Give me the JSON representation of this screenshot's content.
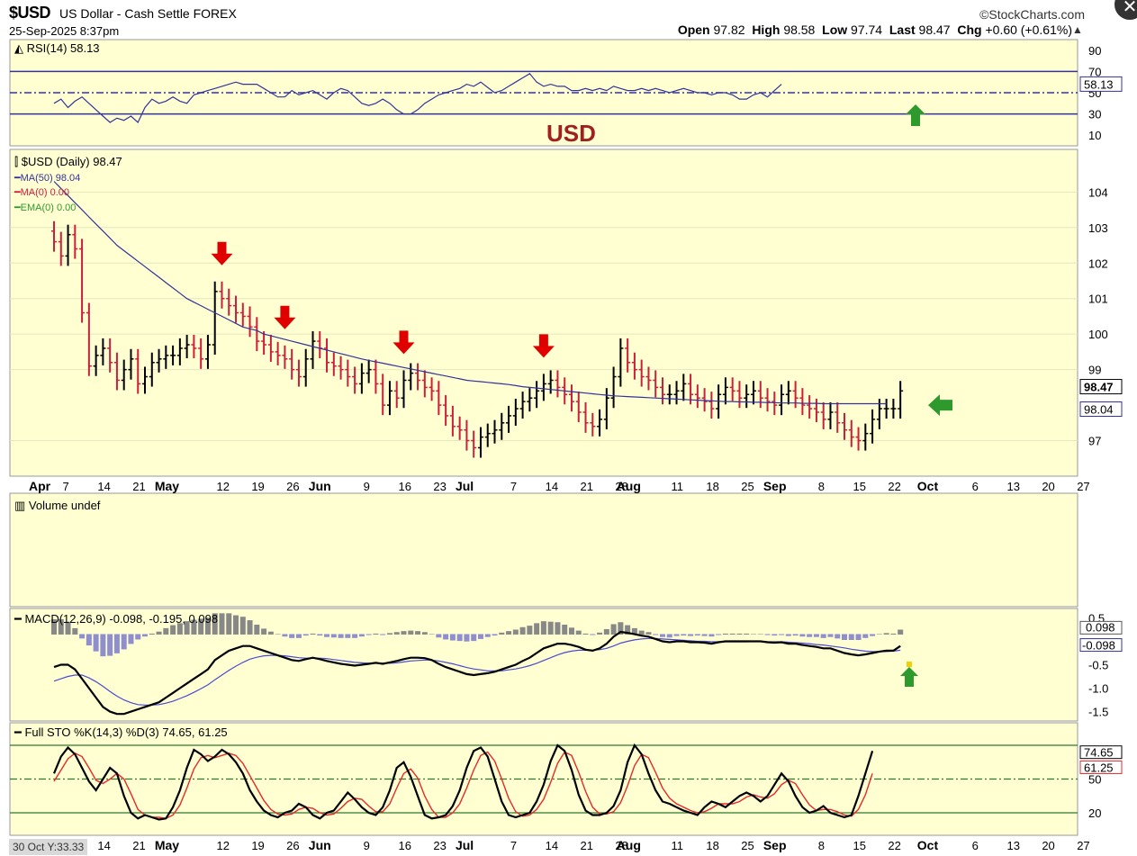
{
  "header": {
    "symbol": "$USD",
    "name": "US Dollar - Cash Settle FOREX",
    "source": "©StockCharts.com",
    "datetime": "25-Sep-2025 8:37pm",
    "open_label": "Open",
    "open": "97.82",
    "high_label": "High",
    "high": "98.58",
    "low_label": "Low",
    "low": "97.74",
    "last_label": "Last",
    "last": "98.47",
    "chg_label": "Chg",
    "chg": "+0.60 (+0.61%)"
  },
  "status_bar": "30 Oct Y:33.33",
  "colors": {
    "panel_bg": "#ffffd2",
    "up": "#000000",
    "down": "#cc1f3d",
    "ma": "#333399",
    "arrow_red": "#e00000",
    "arrow_green": "#2e9a2e",
    "annot": "#a02020"
  },
  "chart_data": [
    {
      "type": "line",
      "panel": "rsi",
      "title": "RSI(14) 58.13",
      "yticks": [
        90,
        70,
        50,
        30,
        10
      ],
      "ylim": [
        0,
        100
      ],
      "levels": [
        70,
        50,
        30
      ],
      "last_label": "58.13",
      "annotation": "USD",
      "values": [
        40,
        44,
        36,
        42,
        46,
        40,
        34,
        28,
        22,
        26,
        24,
        28,
        22,
        36,
        44,
        40,
        42,
        46,
        42,
        40,
        48,
        50,
        52,
        54,
        56,
        58,
        60,
        58,
        58,
        58,
        54,
        50,
        46,
        46,
        52,
        48,
        50,
        52,
        48,
        44,
        50,
        54,
        52,
        46,
        40,
        38,
        40,
        44,
        40,
        34,
        30,
        30,
        34,
        40,
        44,
        48,
        50,
        52,
        54,
        58,
        56,
        60,
        55,
        50,
        52,
        56,
        60,
        64,
        68,
        60,
        56,
        58,
        56,
        56,
        52,
        52,
        54,
        52,
        54,
        52,
        56,
        54,
        52,
        52,
        54,
        52,
        54,
        52,
        50,
        52,
        54,
        52,
        50,
        50,
        48,
        50,
        50,
        48,
        44,
        44,
        48,
        50,
        46,
        52,
        58
      ],
      "markers": [
        "green-up-arrow"
      ]
    },
    {
      "type": "ohlc",
      "panel": "price",
      "title": "$USD (Daily) 98.47",
      "legend": [
        {
          "name": "MA(50) 98.04",
          "color": "#333399"
        },
        {
          "name": "MA(0) 0.00",
          "color": "#cc1f3d"
        },
        {
          "name": "EMA(0) 0.00",
          "color": "#2e9a2e"
        }
      ],
      "yticks": [
        104,
        103,
        102,
        101,
        100,
        99,
        97
      ],
      "ylim": [
        96.0,
        105.2
      ],
      "last_label": "98.47",
      "ma_label": "98.04",
      "x_months": [
        {
          "label": "Apr",
          "i": 0
        },
        {
          "label": "May",
          "i": 18
        },
        {
          "label": "Jun",
          "i": 40
        },
        {
          "label": "Jul",
          "i": 61
        },
        {
          "label": "Aug",
          "i": 84
        },
        {
          "label": "Sep",
          "i": 105
        },
        {
          "label": "Oct",
          "i": 127
        }
      ],
      "x_days": [
        {
          "label": "7",
          "i": 2
        },
        {
          "label": "14",
          "i": 7
        },
        {
          "label": "21",
          "i": 12
        },
        {
          "label": "12",
          "i": 24
        },
        {
          "label": "19",
          "i": 29
        },
        {
          "label": "26",
          "i": 34
        },
        {
          "label": "9",
          "i": 45
        },
        {
          "label": "16",
          "i": 50
        },
        {
          "label": "23",
          "i": 55
        },
        {
          "label": "7",
          "i": 66
        },
        {
          "label": "14",
          "i": 71
        },
        {
          "label": "21",
          "i": 76
        },
        {
          "label": "28",
          "i": 81
        },
        {
          "label": "11",
          "i": 89
        },
        {
          "label": "18",
          "i": 94
        },
        {
          "label": "25",
          "i": 99
        },
        {
          "label": "8",
          "i": 110
        },
        {
          "label": "15",
          "i": 115
        },
        {
          "label": "22",
          "i": 120
        },
        {
          "label": "6",
          "i": 132
        },
        {
          "label": "13",
          "i": 137
        },
        {
          "label": "20",
          "i": 142
        },
        {
          "label": "27",
          "i": 147
        }
      ],
      "closes": [
        102.6,
        102.2,
        102.8,
        102.4,
        100.6,
        99.1,
        99.4,
        99.6,
        99.2,
        98.7,
        99.0,
        99.3,
        98.6,
        98.8,
        99.2,
        99.3,
        99.4,
        99.4,
        99.6,
        99.7,
        99.6,
        99.3,
        99.7,
        101.2,
        101.0,
        100.8,
        100.6,
        100.5,
        100.2,
        99.8,
        99.7,
        99.5,
        99.4,
        99.3,
        99.0,
        98.8,
        99.3,
        99.8,
        99.6,
        99.2,
        99.1,
        99.0,
        98.8,
        98.6,
        98.9,
        99.0,
        98.6,
        98.0,
        98.4,
        98.2,
        98.7,
        98.9,
        98.7,
        98.5,
        98.4,
        98.0,
        97.7,
        97.4,
        97.3,
        97.0,
        96.8,
        97.1,
        97.2,
        97.3,
        97.5,
        97.7,
        97.9,
        98.1,
        98.2,
        98.4,
        98.6,
        98.7,
        98.5,
        98.3,
        98.1,
        97.8,
        97.5,
        97.4,
        97.6,
        98.2,
        98.8,
        99.6,
        99.2,
        99.0,
        98.8,
        98.7,
        98.5,
        98.3,
        98.3,
        98.4,
        98.6,
        98.3,
        98.2,
        98.1,
        97.9,
        98.3,
        98.5,
        98.4,
        98.2,
        98.3,
        98.4,
        98.2,
        98.1,
        98.0,
        98.3,
        98.4,
        98.2,
        98.0,
        97.9,
        97.8,
        97.6,
        97.8,
        97.5,
        97.3,
        97.1,
        97.0,
        97.2,
        97.6,
        97.9,
        97.9,
        97.9,
        98.4
      ],
      "ma50": [
        104.3,
        104.1,
        103.9,
        103.7,
        103.5,
        103.3,
        103.1,
        102.9,
        102.7,
        102.5,
        102.35,
        102.2,
        102.05,
        101.9,
        101.75,
        101.6,
        101.45,
        101.3,
        101.15,
        101.0,
        100.9,
        100.8,
        100.7,
        100.6,
        100.5,
        100.4,
        100.3,
        100.2,
        100.15,
        100.1,
        100.0,
        99.95,
        99.9,
        99.85,
        99.8,
        99.75,
        99.7,
        99.65,
        99.6,
        99.55,
        99.5,
        99.45,
        99.4,
        99.35,
        99.3,
        99.26,
        99.22,
        99.18,
        99.14,
        99.1,
        99.06,
        99.02,
        98.98,
        98.94,
        98.9,
        98.86,
        98.82,
        98.78,
        98.74,
        98.7,
        98.68,
        98.66,
        98.64,
        98.62,
        98.6,
        98.58,
        98.55,
        98.52,
        98.5,
        98.48,
        98.46,
        98.44,
        98.42,
        98.4,
        98.38,
        98.36,
        98.34,
        98.32,
        98.3,
        98.28,
        98.26,
        98.25,
        98.24,
        98.23,
        98.22,
        98.21,
        98.2,
        98.19,
        98.18,
        98.17,
        98.16,
        98.15,
        98.14,
        98.13,
        98.12,
        98.11,
        98.1,
        98.1,
        98.09,
        98.09,
        98.08,
        98.08,
        98.07,
        98.07,
        98.06,
        98.06,
        98.06,
        98.05,
        98.05,
        98.05,
        98.04,
        98.04,
        98.04,
        98.04,
        98.04,
        98.04,
        98.04,
        98.04,
        98.04,
        98.04
      ],
      "markers": [
        "red-down-arrow",
        "red-down-arrow",
        "red-down-arrow",
        "red-down-arrow",
        "green-left-arrow"
      ],
      "marker_i": [
        24,
        33,
        50,
        70
      ]
    },
    {
      "type": "bar",
      "panel": "volume",
      "title": "Volume undef",
      "values": []
    },
    {
      "type": "line",
      "panel": "macd",
      "title": "MACD(12,26,9) -0.098, -0.195, 0.098",
      "yticks": [
        0.5,
        -0.5,
        -1.0,
        -1.5
      ],
      "ylim": [
        -1.7,
        0.7
      ],
      "last_labels": [
        "0.098",
        "-0.098"
      ],
      "macd": [
        -0.55,
        -0.5,
        -0.5,
        -0.6,
        -0.8,
        -1.0,
        -1.2,
        -1.4,
        -1.5,
        -1.55,
        -1.55,
        -1.5,
        -1.45,
        -1.4,
        -1.35,
        -1.3,
        -1.2,
        -1.1,
        -1.0,
        -0.9,
        -0.8,
        -0.7,
        -0.6,
        -0.4,
        -0.3,
        -0.2,
        -0.15,
        -0.1,
        -0.1,
        -0.15,
        -0.2,
        -0.25,
        -0.3,
        -0.35,
        -0.4,
        -0.42,
        -0.38,
        -0.35,
        -0.38,
        -0.42,
        -0.45,
        -0.48,
        -0.5,
        -0.52,
        -0.5,
        -0.48,
        -0.46,
        -0.48,
        -0.45,
        -0.42,
        -0.38,
        -0.35,
        -0.35,
        -0.36,
        -0.4,
        -0.48,
        -0.55,
        -0.6,
        -0.65,
        -0.7,
        -0.72,
        -0.7,
        -0.68,
        -0.65,
        -0.6,
        -0.55,
        -0.5,
        -0.42,
        -0.35,
        -0.25,
        -0.15,
        -0.1,
        -0.05,
        -0.05,
        -0.08,
        -0.12,
        -0.18,
        -0.2,
        -0.15,
        -0.05,
        0.1,
        0.2,
        0.18,
        0.15,
        0.12,
        0.1,
        0.05,
        0.0,
        -0.02,
        0.0,
        0.0,
        -0.02,
        -0.02,
        -0.03,
        -0.05,
        -0.02,
        0.0,
        0.0,
        0.0,
        0.0,
        0.0,
        0.0,
        -0.02,
        -0.03,
        -0.02,
        -0.05,
        -0.05,
        -0.08,
        -0.1,
        -0.12,
        -0.15,
        -0.15,
        -0.2,
        -0.25,
        -0.28,
        -0.3,
        -0.28,
        -0.25,
        -0.22,
        -0.2,
        -0.2,
        -0.1
      ],
      "signal": [
        -0.85,
        -0.8,
        -0.75,
        -0.72,
        -0.72,
        -0.78,
        -0.86,
        -0.96,
        -1.07,
        -1.17,
        -1.25,
        -1.31,
        -1.35,
        -1.36,
        -1.36,
        -1.35,
        -1.32,
        -1.28,
        -1.22,
        -1.16,
        -1.09,
        -1.01,
        -0.93,
        -0.82,
        -0.72,
        -0.62,
        -0.53,
        -0.45,
        -0.38,
        -0.34,
        -0.31,
        -0.3,
        -0.3,
        -0.31,
        -0.33,
        -0.35,
        -0.36,
        -0.36,
        -0.36,
        -0.37,
        -0.39,
        -0.41,
        -0.43,
        -0.45,
        -0.46,
        -0.47,
        -0.47,
        -0.47,
        -0.47,
        -0.46,
        -0.44,
        -0.42,
        -0.41,
        -0.4,
        -0.4,
        -0.42,
        -0.45,
        -0.48,
        -0.52,
        -0.56,
        -0.59,
        -0.61,
        -0.63,
        -0.63,
        -0.63,
        -0.61,
        -0.59,
        -0.56,
        -0.52,
        -0.47,
        -0.41,
        -0.35,
        -0.29,
        -0.24,
        -0.21,
        -0.19,
        -0.19,
        -0.19,
        -0.18,
        -0.15,
        -0.1,
        -0.04,
        0.0,
        0.03,
        0.05,
        0.06,
        0.06,
        0.05,
        0.04,
        0.03,
        0.02,
        0.01,
        0.0,
        0.0,
        -0.01,
        -0.01,
        -0.01,
        -0.01,
        -0.01,
        -0.01,
        0.0,
        0.0,
        -0.01,
        -0.01,
        -0.01,
        -0.02,
        -0.03,
        -0.04,
        -0.05,
        -0.07,
        -0.08,
        -0.1,
        -0.12,
        -0.14,
        -0.17,
        -0.19,
        -0.21,
        -0.22,
        -0.22,
        -0.22,
        -0.21,
        -0.19
      ]
    },
    {
      "type": "line",
      "panel": "sto",
      "title": "Full STO %K(14,3) %D(3) 74.65, 61.25",
      "yticks": [
        50,
        20
      ],
      "ylim": [
        0,
        100
      ],
      "levels": [
        80,
        50,
        20
      ],
      "last_labels": [
        "74.65",
        "61.25"
      ],
      "k": [
        55,
        70,
        78,
        72,
        60,
        48,
        40,
        50,
        60,
        55,
        35,
        20,
        15,
        18,
        16,
        14,
        15,
        25,
        40,
        60,
        76,
        72,
        66,
        70,
        76,
        72,
        65,
        55,
        40,
        30,
        22,
        18,
        16,
        20,
        22,
        28,
        25,
        18,
        15,
        20,
        22,
        30,
        38,
        32,
        25,
        20,
        18,
        25,
        40,
        60,
        65,
        52,
        35,
        18,
        15,
        16,
        18,
        26,
        40,
        60,
        75,
        78,
        70,
        50,
        30,
        18,
        16,
        18,
        20,
        30,
        45,
        66,
        80,
        75,
        58,
        36,
        22,
        18,
        18,
        20,
        26,
        40,
        65,
        80,
        72,
        55,
        40,
        30,
        28,
        25,
        22,
        20,
        18,
        25,
        30,
        28,
        25,
        30,
        35,
        38,
        35,
        30,
        35,
        45,
        55,
        48,
        35,
        25,
        20,
        22,
        26,
        20,
        18,
        16,
        18,
        35,
        55,
        75
      ],
      "d": [
        48,
        58,
        68,
        73,
        70,
        60,
        49,
        46,
        50,
        55,
        50,
        37,
        23,
        18,
        16,
        16,
        15,
        18,
        27,
        42,
        59,
        69,
        71,
        69,
        71,
        73,
        71,
        64,
        53,
        42,
        31,
        23,
        19,
        18,
        19,
        23,
        25,
        24,
        20,
        18,
        19,
        24,
        30,
        33,
        32,
        26,
        21,
        21,
        28,
        42,
        55,
        59,
        51,
        35,
        23,
        16,
        16,
        20,
        28,
        42,
        58,
        71,
        74,
        66,
        50,
        33,
        21,
        17,
        18,
        23,
        32,
        47,
        64,
        74,
        71,
        56,
        39,
        25,
        19,
        19,
        21,
        29,
        44,
        62,
        72,
        69,
        56,
        42,
        33,
        28,
        25,
        22,
        20,
        21,
        24,
        28,
        28,
        28,
        30,
        34,
        36,
        34,
        33,
        37,
        45,
        49,
        46,
        36,
        27,
        22,
        23,
        23,
        21,
        18,
        17,
        23,
        36,
        55
      ]
    }
  ]
}
